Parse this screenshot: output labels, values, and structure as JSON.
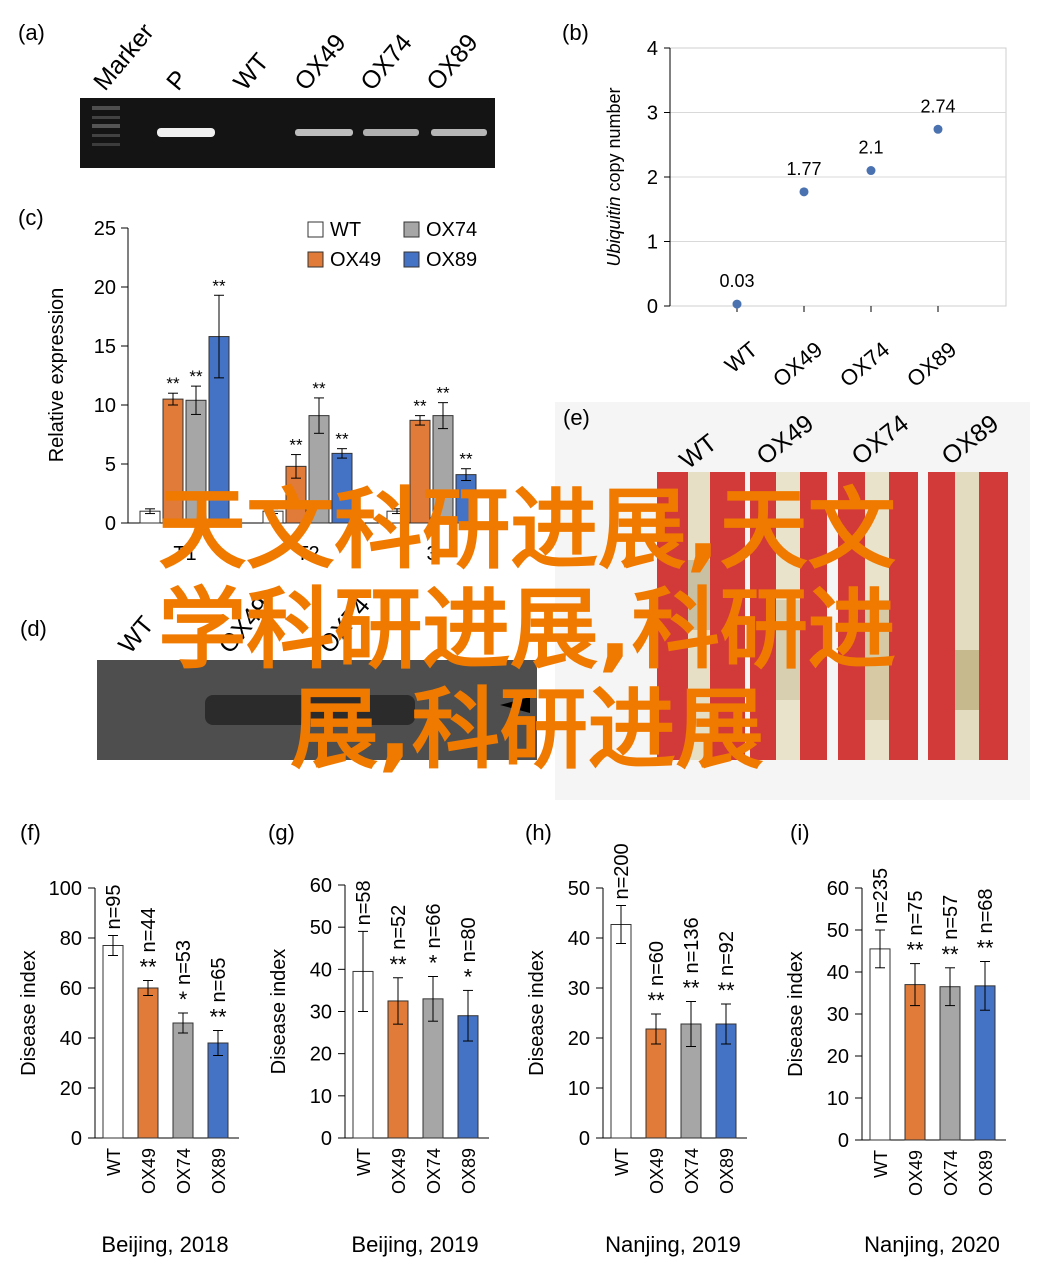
{
  "panels": {
    "a": {
      "letter": "(a)",
      "lanes": [
        "Marker",
        "P",
        "WT",
        "OX49",
        "OX74",
        "OX89"
      ]
    },
    "b": {
      "letter": "(b)",
      "ylabel_italic": "Ubiquitin",
      "ylabel_rest": " copy number"
    },
    "c": {
      "letter": "(c)",
      "ylabel": "Relative expression",
      "star": "**"
    },
    "d": {
      "letter": "(d)",
      "lanes": [
        "WT",
        "OX49",
        "OX74"
      ]
    },
    "e": {
      "letter": "(e)",
      "lanes": [
        "WT",
        "OX49",
        "OX74",
        "OX89"
      ]
    },
    "f": {
      "letter": "(f)"
    },
    "g": {
      "letter": "(g)"
    },
    "h": {
      "letter": "(h)"
    },
    "i": {
      "letter": "(i)"
    }
  },
  "watermark": {
    "line1": "天文科研进展,天文",
    "line2": "学科研进展,科研进",
    "line3": "展,科研进展"
  },
  "colors": {
    "WT": "#ffffff",
    "OX49": "#e07b39",
    "OX74": "#a6a6a6",
    "OX89": "#4472c4",
    "scatter": "#4a72b0",
    "watermark": "#f07a00",
    "stem_bg": "#d23a3a"
  },
  "chart_data": [
    {
      "panel": "b",
      "type": "scatter",
      "categories": [
        "WT",
        "OX49",
        "OX74",
        "OX89"
      ],
      "values": [
        0.03,
        1.77,
        2.1,
        2.74
      ],
      "data_labels": [
        "0.03",
        "1.77",
        "2.1",
        "2.74"
      ],
      "ylim": [
        0,
        4
      ],
      "yticks": [
        "0",
        "1",
        "2",
        "3",
        "4"
      ],
      "grid": true
    },
    {
      "panel": "c",
      "type": "bar",
      "categories": [
        "T1",
        "T2",
        "T3"
      ],
      "category_labels_visible": [
        "T1",
        "T2",
        "3"
      ],
      "legend": [
        "WT",
        "OX74",
        "OX49",
        "OX89"
      ],
      "series": [
        {
          "name": "WT",
          "values": [
            1,
            1,
            1
          ],
          "err": [
            0.2,
            0.2,
            0.2
          ],
          "sig": [
            "",
            "",
            ""
          ]
        },
        {
          "name": "OX49",
          "values": [
            10.5,
            4.8,
            8.7
          ],
          "err": [
            0.5,
            1.0,
            0.4
          ],
          "sig": [
            "**",
            "**",
            "**"
          ]
        },
        {
          "name": "OX74",
          "values": [
            10.4,
            9.1,
            9.1
          ],
          "err": [
            1.2,
            1.5,
            1.1
          ],
          "sig": [
            "**",
            "**",
            "**"
          ]
        },
        {
          "name": "OX89",
          "values": [
            15.8,
            5.9,
            4.1
          ],
          "err": [
            3.5,
            0.4,
            0.5
          ],
          "sig": [
            "**",
            "**",
            "**"
          ]
        }
      ],
      "ylim": [
        0,
        25
      ],
      "yticks": [
        "0",
        "5",
        "10",
        "15",
        "20",
        "25"
      ]
    },
    {
      "panel": "f",
      "type": "bar",
      "title": "Beijing, 2018",
      "ylabel": "Disease index",
      "categories": [
        "WT",
        "OX49",
        "OX74",
        "OX89"
      ],
      "values": [
        77,
        60,
        46,
        38
      ],
      "err": [
        4,
        3,
        4,
        5
      ],
      "n_labels": [
        "n=95",
        "n=44",
        "n=53",
        "n=65"
      ],
      "sig": [
        "",
        "**",
        "*",
        "**"
      ],
      "ylim": [
        0,
        100
      ],
      "yticks": [
        "0",
        "20",
        "40",
        "60",
        "80",
        "100"
      ]
    },
    {
      "panel": "g",
      "type": "bar",
      "title": "Beijing, 2019",
      "ylabel": "Disease index",
      "categories": [
        "WT",
        "OX49",
        "OX74",
        "OX89"
      ],
      "values": [
        39.5,
        32.5,
        33,
        29
      ],
      "err": [
        9.5,
        5.5,
        5.3,
        6
      ],
      "n_labels": [
        "n=58",
        "n=52",
        "n=66",
        "n=80"
      ],
      "sig": [
        "",
        "**",
        "*",
        "*"
      ],
      "ylim": [
        0,
        60
      ],
      "yticks": [
        "0",
        "10",
        "20",
        "30",
        "40",
        "50",
        "60"
      ]
    },
    {
      "panel": "h",
      "type": "bar",
      "title": "Nanjing, 2019",
      "ylabel": "Disease index",
      "categories": [
        "WT",
        "OX49",
        "OX74",
        "OX89"
      ],
      "values": [
        42.7,
        21.8,
        22.8,
        22.8
      ],
      "err": [
        3.8,
        3,
        4.5,
        4
      ],
      "n_labels": [
        "n=200",
        "n=60",
        "n=136",
        "n=92"
      ],
      "sig": [
        "",
        "**",
        "**",
        "**"
      ],
      "ylim": [
        0,
        50
      ],
      "yticks": [
        "0",
        "10",
        "20",
        "30",
        "40",
        "50"
      ]
    },
    {
      "panel": "i",
      "type": "bar",
      "title": "Nanjing, 2020",
      "ylabel": "Disease index",
      "categories": [
        "WT",
        "OX49",
        "OX74",
        "OX89"
      ],
      "values": [
        45.5,
        37,
        36.5,
        36.7
      ],
      "err": [
        4.5,
        5,
        4.5,
        5.8
      ],
      "n_labels": [
        "n=235",
        "n=75",
        "n=57",
        "n=68"
      ],
      "sig": [
        "",
        "**",
        "**",
        "**"
      ],
      "ylim": [
        0,
        60
      ],
      "yticks": [
        "0",
        "10",
        "20",
        "30",
        "40",
        "50",
        "60"
      ]
    }
  ]
}
